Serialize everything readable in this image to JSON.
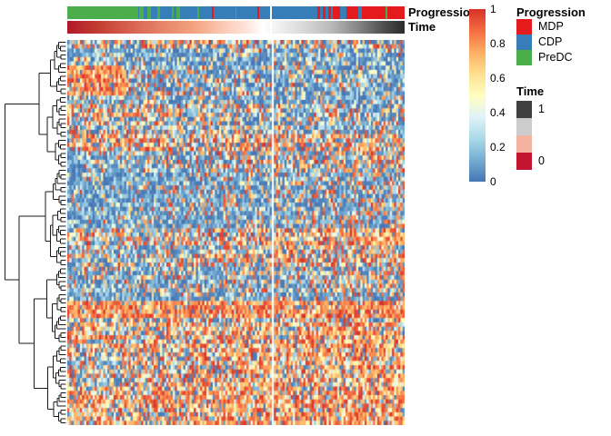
{
  "chart_data": {
    "type": "heatmap",
    "title": "",
    "description": "Row-clustered heatmap of scaled values (0-1) with a left row dendrogram, two top column annotation tracks (Progression classes, Time gradient), and a vertical column split gap at 60.2% of the width.",
    "value_domain": [
      0,
      1
    ],
    "colormap": {
      "name": "RdYlBu reversed (0=blue, 1=red)",
      "stops": [
        "#4575B4",
        "#74ADD1",
        "#ABD9E9",
        "#E0F3F8",
        "#FFFFBF",
        "#FEE090",
        "#FDAE61",
        "#F46D43",
        "#D73027"
      ]
    },
    "grid": {
      "rows": 90,
      "cols": 160,
      "col_split_after_col": 97,
      "seed": 1337
    },
    "row_blocks": [
      {
        "r0": 0,
        "r1": 2,
        "red0": 0.45,
        "red1": 0.33,
        "mid": 0.2
      },
      {
        "r0": 2,
        "r1": 6,
        "red0": 0.12,
        "red1": 0.09,
        "mid": 0.14
      },
      {
        "r0": 6,
        "r1": 13,
        "red0": 0.3,
        "red1": 0.1,
        "mid": 0.15,
        "patch": {
          "c0": 0,
          "c1": 28,
          "red": 0.8
        }
      },
      {
        "r0": 13,
        "r1": 15,
        "red0": 0.12,
        "red1": 0.15,
        "mid": 0.14
      },
      {
        "r0": 15,
        "r1": 18,
        "red0": 0.5,
        "red1": 0.15,
        "mid": 0.2
      },
      {
        "r0": 18,
        "r1": 22,
        "red0": 0.3,
        "red1": 0.2,
        "mid": 0.18
      },
      {
        "r0": 22,
        "r1": 26,
        "red0": 0.5,
        "red1": 0.42,
        "mid": 0.22
      },
      {
        "r0": 26,
        "r1": 31,
        "red0": 0.12,
        "red1": 0.45,
        "mid": 0.15
      },
      {
        "r0": 31,
        "r1": 44,
        "red0": 0.06,
        "red1": 0.28,
        "mid": 0.1
      },
      {
        "r0": 44,
        "r1": 48,
        "red0": 0.3,
        "red1": 0.62,
        "mid": 0.2
      },
      {
        "r0": 48,
        "r1": 53,
        "red0": 0.2,
        "red1": 0.5,
        "mid": 0.18
      },
      {
        "r0": 53,
        "r1": 59,
        "red0": 0.12,
        "red1": 0.35,
        "mid": 0.15
      },
      {
        "r0": 59,
        "r1": 61,
        "red0": 0.08,
        "red1": 0.22,
        "mid": 0.12
      },
      {
        "r0": 61,
        "r1": 65,
        "red0": 0.82,
        "red1": 0.76,
        "mid": 0.12
      },
      {
        "r0": 65,
        "r1": 66,
        "red0": 0.15,
        "red1": 0.45,
        "mid": 0.2
      },
      {
        "r0": 66,
        "r1": 82,
        "red0": 0.45,
        "red1": 0.58,
        "mid": 0.25,
        "patch": {
          "c0": 4,
          "c1": 26,
          "red": 0.18,
          "rows": [
            74,
            81
          ]
        }
      },
      {
        "r0": 82,
        "r1": 90,
        "red0": 0.5,
        "red1": 0.68,
        "mid": 0.22
      }
    ],
    "column_annotations": {
      "progression": {
        "label": "Progression",
        "classes": [
          {
            "label": "MDP",
            "color": "#E41A1C"
          },
          {
            "label": "CDP",
            "color": "#377EB8"
          },
          {
            "label": "PreDC",
            "color": "#4CAE4A"
          }
        ],
        "segments": [
          [
            "PreDC",
            0.21
          ],
          [
            "CDP",
            0.004
          ],
          [
            "PreDC",
            0.012
          ],
          [
            "CDP",
            0.012
          ],
          [
            "PreDC",
            0.009
          ],
          [
            "CDP",
            0.02
          ],
          [
            "PreDC",
            0.007
          ],
          [
            "CDP",
            0.035
          ],
          [
            "PreDC",
            0.006
          ],
          [
            "CDP",
            0.01
          ],
          [
            "PreDC",
            0.01
          ],
          [
            "CDP",
            0.05
          ],
          [
            "PreDC",
            0.005
          ],
          [
            "CDP",
            0.04
          ],
          [
            "MDP",
            0.004
          ],
          [
            "CDP",
            0.065
          ],
          [
            "PreDC",
            0.004
          ],
          [
            "CDP",
            0.06
          ],
          [
            "MDP",
            0.005
          ],
          [
            "CDP",
            0.034
          ],
          [
            "gap",
            0.005
          ],
          [
            "CDP",
            0.135
          ],
          [
            "MDP",
            0.007
          ],
          [
            "CDP",
            0.01
          ],
          [
            "MDP",
            0.008
          ],
          [
            "CDP",
            0.006
          ],
          [
            "MDP",
            0.01
          ],
          [
            "CDP",
            0.004
          ],
          [
            "MDP",
            0.022
          ],
          [
            "CDP",
            0.018
          ],
          [
            "MDP",
            0.035
          ],
          [
            "CDP",
            0.012
          ],
          [
            "MDP",
            0.07
          ],
          [
            "PreDC",
            0.006
          ],
          [
            "MDP",
            0.05
          ]
        ]
      },
      "time": {
        "label": "Time",
        "min_label": "0",
        "max_label": "1",
        "gradient": [
          [
            "#B2182B",
            0
          ],
          [
            "#C0392F",
            8
          ],
          [
            "#D6604D",
            18
          ],
          [
            "#E58368",
            28
          ],
          [
            "#F4A582",
            38
          ],
          [
            "#FBCDB9",
            47
          ],
          [
            "#FDE3D9",
            53
          ],
          [
            "#FFFFFF",
            58
          ],
          [
            "#EFEFEF",
            63
          ],
          [
            "#D9D9D9",
            70
          ],
          [
            "#BABABA",
            78
          ],
          [
            "#878787",
            86
          ],
          [
            "#4D4D4D",
            94
          ],
          [
            "#2B2B2B",
            100
          ]
        ],
        "gap_at": 0.602
      }
    },
    "colorbar": {
      "ticks": [
        "1",
        "0.8",
        "0.6",
        "0.4",
        "0.2",
        "0"
      ],
      "gradient_top_to_bottom": [
        "#D73027",
        "#F46D43",
        "#FDAE61",
        "#FEE090",
        "#FFFFBF",
        "#E0F3F8",
        "#ABD9E9",
        "#74ADD1",
        "#4575B4"
      ]
    },
    "row_dendrogram": {
      "shown": true,
      "leaves": 90,
      "side": "left",
      "first_split_at_leaf": 30
    }
  },
  "legends": {
    "progression": {
      "title": "Progression",
      "items": [
        {
          "label": "MDP",
          "color": "#E41A1C"
        },
        {
          "label": "CDP",
          "color": "#377EB8"
        },
        {
          "label": "PreDC",
          "color": "#4CAE4A"
        }
      ]
    },
    "time": {
      "title": "Time",
      "swatches": [
        {
          "color": "#404040",
          "label": "1"
        },
        {
          "color": "#CCCCCC",
          "label": ""
        },
        {
          "color": "#F5B29E",
          "label": ""
        },
        {
          "color": "#C21330",
          "label": "0"
        }
      ]
    }
  }
}
